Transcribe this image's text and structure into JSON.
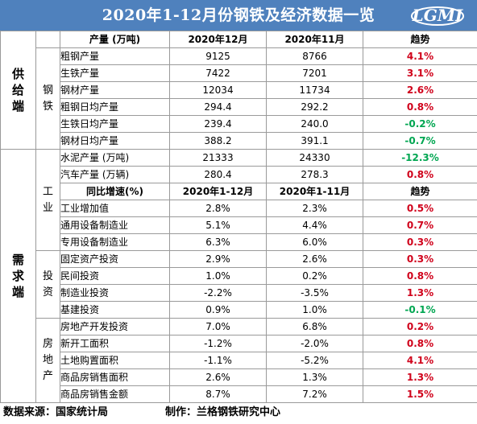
{
  "title": "2020年1-12月份钢铁及经济数据一览",
  "logo_text": "LGMI",
  "sections": {
    "supply": "供给端",
    "demand": "需求端",
    "steel": "钢铁",
    "industry": "工业",
    "investment": "投资",
    "realestate": "房地产"
  },
  "header1": {
    "name": "产量 (万吨)",
    "col1": "2020年12月",
    "col2": "2020年11月",
    "trend": "趋势"
  },
  "header2": {
    "name": "同比增速(%)",
    "col1": "2020年1-12月",
    "col2": "2020年1-11月",
    "trend": "趋势"
  },
  "rows": [
    {
      "name": "粗钢产量",
      "v1": "9125",
      "v2": "8766",
      "trend": "4.1%",
      "dir": "up"
    },
    {
      "name": "生铁产量",
      "v1": "7422",
      "v2": "7201",
      "trend": "3.1%",
      "dir": "up"
    },
    {
      "name": "钢材产量",
      "v1": "12034",
      "v2": "11734",
      "trend": "2.6%",
      "dir": "up"
    },
    {
      "name": "粗钢日均产量",
      "v1": "294.4",
      "v2": "292.2",
      "trend": "0.8%",
      "dir": "up"
    },
    {
      "name": "生铁日均产量",
      "v1": "239.4",
      "v2": "240.0",
      "trend": "-0.2%",
      "dir": "down"
    },
    {
      "name": "钢材日均产量",
      "v1": "388.2",
      "v2": "391.1",
      "trend": "-0.7%",
      "dir": "down"
    },
    {
      "name": "水泥产量 (万吨)",
      "v1": "21333",
      "v2": "24330",
      "trend": "-12.3%",
      "dir": "down"
    },
    {
      "name": "汽车产量 (万辆)",
      "v1": "280.4",
      "v2": "278.3",
      "trend": "0.8%",
      "dir": "up"
    },
    {
      "name": "工业增加值",
      "v1": "2.8%",
      "v2": "2.3%",
      "trend": "0.5%",
      "dir": "up"
    },
    {
      "name": "通用设备制造业",
      "v1": "5.1%",
      "v2": "4.4%",
      "trend": "0.7%",
      "dir": "up"
    },
    {
      "name": "专用设备制造业",
      "v1": "6.3%",
      "v2": "6.0%",
      "trend": "0.3%",
      "dir": "up"
    },
    {
      "name": "固定资产投资",
      "v1": "2.9%",
      "v2": "2.6%",
      "trend": "0.3%",
      "dir": "up"
    },
    {
      "name": "民间投资",
      "v1": "1.0%",
      "v2": "0.2%",
      "trend": "0.8%",
      "dir": "up"
    },
    {
      "name": "制造业投资",
      "v1": "-2.2%",
      "v2": "-3.5%",
      "trend": "1.3%",
      "dir": "up"
    },
    {
      "name": "基建投资",
      "v1": "0.9%",
      "v2": "1.0%",
      "trend": "-0.1%",
      "dir": "down"
    },
    {
      "name": "房地产开发投资",
      "v1": "7.0%",
      "v2": "6.8%",
      "trend": "0.2%",
      "dir": "up"
    },
    {
      "name": "新开工面积",
      "v1": "-1.2%",
      "v2": "-2.0%",
      "trend": "0.8%",
      "dir": "up"
    },
    {
      "name": "土地购置面积",
      "v1": "-1.1%",
      "v2": "-5.2%",
      "trend": "4.1%",
      "dir": "up"
    },
    {
      "name": "商品房销售面积",
      "v1": "2.6%",
      "v2": "1.3%",
      "trend": "1.3%",
      "dir": "up"
    },
    {
      "name": "商品房销售金额",
      "v1": "8.7%",
      "v2": "7.2%",
      "trend": "1.5%",
      "dir": "up"
    }
  ],
  "footer": {
    "source": "数据来源：国家统计局",
    "maker": "制作：兰格钢铁研究中心"
  },
  "colors": {
    "title_bg": "#4f81bd",
    "up": "#d0021b",
    "down": "#00a651"
  }
}
